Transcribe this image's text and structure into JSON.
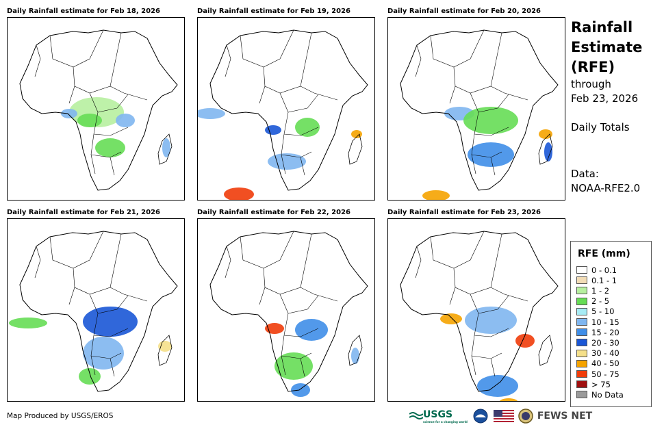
{
  "panels": [
    {
      "title": "Daily Rainfall estimate for Feb 18, 2026"
    },
    {
      "title": "Daily Rainfall estimate for Feb 19, 2026"
    },
    {
      "title": "Daily Rainfall estimate for Feb 20, 2026"
    },
    {
      "title": "Daily Rainfall estimate for Feb 21, 2026"
    },
    {
      "title": "Daily Rainfall estimate for Feb 22, 2026"
    },
    {
      "title": "Daily Rainfall estimate for Feb 23, 2026"
    }
  ],
  "side": {
    "title_line1": "Rainfall",
    "title_line2": "Estimate",
    "title_line3": "(RFE)",
    "through": "through",
    "date": "Feb 23, 2026",
    "totals": "Daily Totals",
    "data_label": "Data:",
    "data_source": "NOAA-RFE2.0"
  },
  "legend": {
    "title": "RFE (mm)",
    "items": [
      {
        "label": "0 - 0.1",
        "color": "#ffffff"
      },
      {
        "label": "0.1 - 1",
        "color": "#f2dcb6"
      },
      {
        "label": "1 - 2",
        "color": "#b7f0a0"
      },
      {
        "label": "2 - 5",
        "color": "#66dd55"
      },
      {
        "label": "5 - 10",
        "color": "#a8ecf5"
      },
      {
        "label": "10 - 15",
        "color": "#7fb6f0"
      },
      {
        "label": "15 - 20",
        "color": "#3f8ee8"
      },
      {
        "label": "20 - 30",
        "color": "#1a56d6"
      },
      {
        "label": "30 - 40",
        "color": "#f5e08a"
      },
      {
        "label": "40 - 50",
        "color": "#f5a300"
      },
      {
        "label": "50 - 75",
        "color": "#f03c0a"
      },
      {
        "label": "> 75",
        "color": "#a01010"
      },
      {
        "label": "No Data",
        "color": "#9a9a9a"
      }
    ]
  },
  "footer": {
    "credit": "Map Produced by USGS/EROS",
    "usgs": "USGS",
    "usgs_tagline": "science for a changing world",
    "fews": "FEWS NET"
  }
}
